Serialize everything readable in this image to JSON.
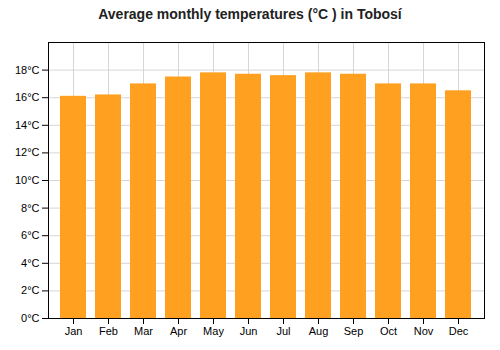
{
  "chart_data": {
    "type": "bar",
    "title": "Average monthly temperatures (°C ) in Tobosí",
    "categories": [
      "Jan",
      "Feb",
      "Mar",
      "Apr",
      "May",
      "Jun",
      "Jul",
      "Aug",
      "Sep",
      "Oct",
      "Nov",
      "Dec"
    ],
    "values": [
      16.1,
      16.2,
      17.0,
      17.5,
      17.8,
      17.7,
      17.6,
      17.8,
      17.7,
      17.0,
      17.0,
      16.5
    ],
    "color": "#FFA020",
    "ylim": [
      0,
      20
    ],
    "yticks": [
      {
        "value": 0,
        "label": "0°C"
      },
      {
        "value": 2,
        "label": "2°C"
      },
      {
        "value": 4,
        "label": "4°C"
      },
      {
        "value": 6,
        "label": "6°C"
      },
      {
        "value": 8,
        "label": "8°C"
      },
      {
        "value": 10,
        "label": "10°C"
      },
      {
        "value": 12,
        "label": "12°C"
      },
      {
        "value": 14,
        "label": "14°C"
      },
      {
        "value": 16,
        "label": "16°C"
      },
      {
        "value": 18,
        "label": "18°C"
      }
    ],
    "grid": true
  }
}
